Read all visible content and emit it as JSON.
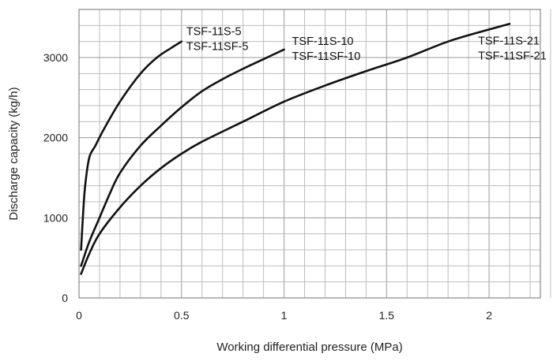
{
  "chart_data": {
    "type": "line",
    "title": "",
    "xlabel": "Working differential pressure (MPa)",
    "ylabel": "Discharge capacity (kg/h)",
    "xlim": [
      0,
      2.25
    ],
    "ylim": [
      0,
      3600
    ],
    "x_ticks": [
      0,
      0.5,
      1,
      1.5,
      2
    ],
    "x_tick_labels": [
      "0",
      "0.5",
      "1",
      "1.5",
      "2"
    ],
    "y_ticks": [
      0,
      1000,
      2000,
      3000
    ],
    "y_tick_labels": [
      "0",
      "1000",
      "2000",
      "3000"
    ],
    "x_minor_step": 0.1,
    "y_minor_step": 200,
    "grid": true,
    "series": [
      {
        "name": "TSF-11S-5 / TSF-11SF-5",
        "labels": [
          "TSF-11S-5",
          "TSF-11SF-5"
        ],
        "x": [
          0.01,
          0.02,
          0.03,
          0.05,
          0.08,
          0.12,
          0.2,
          0.3,
          0.38,
          0.45,
          0.5
        ],
        "y": [
          600,
          1050,
          1400,
          1750,
          1900,
          2100,
          2450,
          2800,
          3000,
          3120,
          3200
        ]
      },
      {
        "name": "TSF-11S-10 / TSF-11SF-10",
        "labels": [
          "TSF-11S-10",
          "TSF-11SF-10"
        ],
        "x": [
          0.01,
          0.05,
          0.1,
          0.15,
          0.2,
          0.3,
          0.4,
          0.5,
          0.6,
          0.7,
          0.8,
          0.9,
          1.0
        ],
        "y": [
          400,
          700,
          1000,
          1300,
          1560,
          1900,
          2150,
          2380,
          2580,
          2730,
          2860,
          2980,
          3100
        ]
      },
      {
        "name": "TSF-11S-21 / TSF-11SF-21",
        "labels": [
          "TSF-11S-21",
          "TSF-11SF-21"
        ],
        "x": [
          0.01,
          0.05,
          0.1,
          0.2,
          0.3,
          0.4,
          0.5,
          0.6,
          0.8,
          1.0,
          1.2,
          1.4,
          1.6,
          1.8,
          2.0,
          2.1
        ],
        "y": [
          300,
          550,
          800,
          1130,
          1400,
          1620,
          1800,
          1950,
          2200,
          2450,
          2650,
          2830,
          3000,
          3200,
          3350,
          3420
        ]
      }
    ]
  }
}
